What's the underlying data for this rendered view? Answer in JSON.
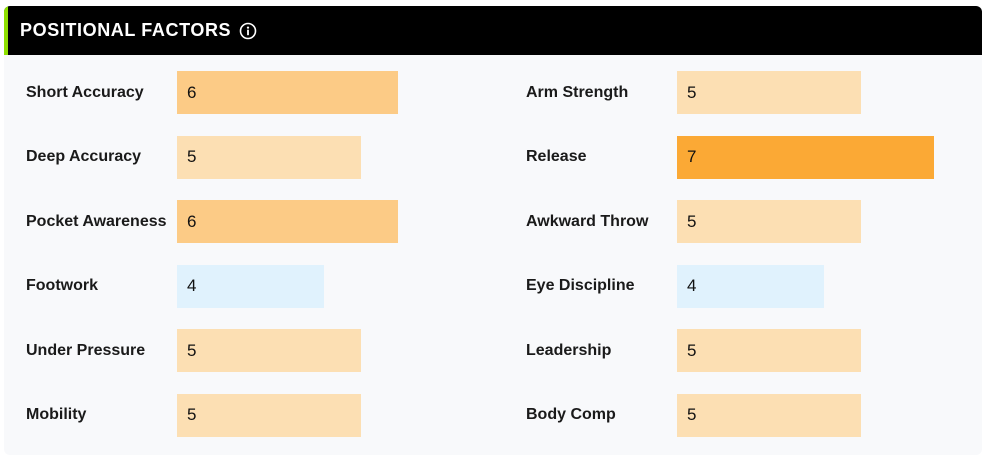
{
  "header": {
    "title": "POSITIONAL FACTORS",
    "info_icon": "info-circle-icon",
    "accent_color": "#8ee000"
  },
  "colors": {
    "level_4": "#e0f2fd",
    "level_5": "#fcdfb3",
    "level_6": "#fccb86",
    "level_7": "#fba935"
  },
  "scale_max": 8,
  "factors_left": [
    {
      "label": "Short Accuracy",
      "value": "6"
    },
    {
      "label": "Deep Accuracy",
      "value": "5"
    },
    {
      "label": "Pocket Awareness",
      "value": "6"
    },
    {
      "label": "Footwork",
      "value": "4"
    },
    {
      "label": "Under Pressure",
      "value": "5"
    },
    {
      "label": "Mobility",
      "value": "5"
    }
  ],
  "factors_right": [
    {
      "label": "Arm Strength",
      "value": "5"
    },
    {
      "label": "Release",
      "value": "7"
    },
    {
      "label": "Awkward Throw",
      "value": "5"
    },
    {
      "label": "Eye Discipline",
      "value": "4"
    },
    {
      "label": "Leadership",
      "value": "5"
    },
    {
      "label": "Body Comp",
      "value": "5"
    }
  ]
}
